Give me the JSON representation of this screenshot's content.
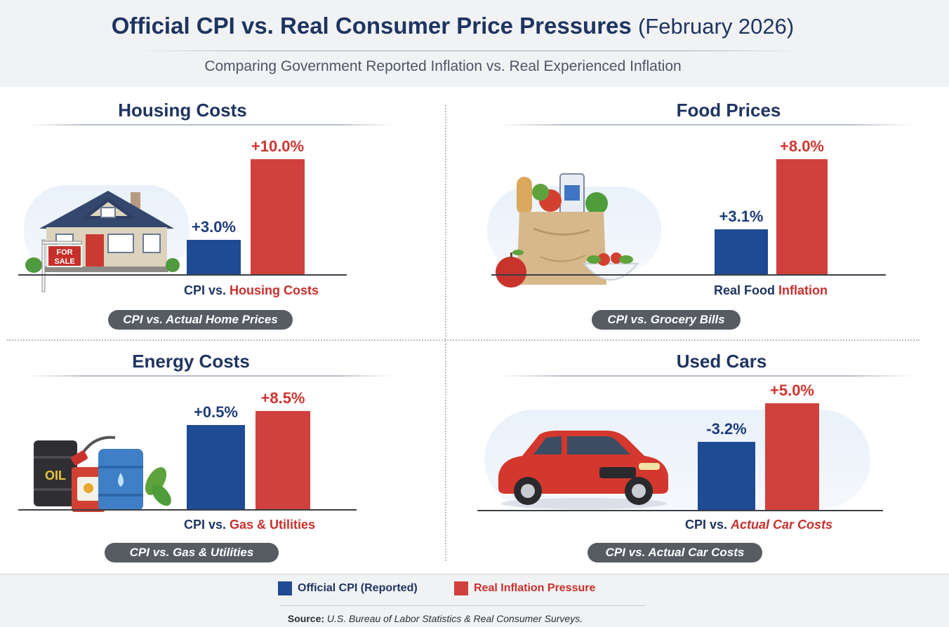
{
  "header": {
    "title_main": "Official CPI vs. Real Consumer Price Pressures",
    "title_date": "(February 2026)",
    "subtitle": "Comparing Government Reported Inflation vs. Real Experienced Inflation"
  },
  "colors": {
    "official": "#1f4a94",
    "real": "#d0413d",
    "navy": "#1e3461",
    "pill": "#575c63"
  },
  "illustrations": {
    "housing": "house-for-sale-illustration",
    "food": "grocery-bag-illustration",
    "energy": "oil-barrels-fuel-pump-illustration",
    "cars": "red-sedan-illustration",
    "for_sale_line1": "FOR",
    "for_sale_line2": "SALE",
    "oil_label": "OIL"
  },
  "chart_data": [
    {
      "type": "bar",
      "title": "Housing Costs",
      "categories": [
        "Official CPI (Reported)",
        "Real Inflation Pressure"
      ],
      "values": [
        3.0,
        10.0
      ],
      "value_labels": [
        "+3.0%",
        "+10.0%"
      ],
      "unit": "%",
      "caption_part1": "CPI vs. ",
      "caption_part2": "Housing Costs",
      "pill": "CPI vs. Actual Home Prices"
    },
    {
      "type": "bar",
      "title": "Food Prices",
      "categories": [
        "Official CPI (Reported)",
        "Real Inflation Pressure"
      ],
      "values": [
        3.1,
        8.0
      ],
      "value_labels": [
        "+3.1%",
        "+8.0%"
      ],
      "unit": "%",
      "caption_part1": "Real Food ",
      "caption_part2": "Inflation",
      "pill": "CPI vs. Grocery Bills"
    },
    {
      "type": "bar",
      "title": "Energy Costs",
      "categories": [
        "Official CPI (Reported)",
        "Real Inflation Pressure"
      ],
      "values": [
        0.5,
        8.5
      ],
      "value_labels": [
        "+0.5%",
        "+8.5%"
      ],
      "unit": "%",
      "caption_part1": "CPI vs. ",
      "caption_part2": "Gas & Utilities",
      "pill": "CPI vs. Gas & Utilities"
    },
    {
      "type": "bar",
      "title": "Used Cars",
      "categories": [
        "Official CPI (Reported)",
        "Real Inflation Pressure"
      ],
      "values": [
        -3.2,
        5.0
      ],
      "value_labels": [
        "-3.2%",
        "+5.0%"
      ],
      "unit": "%",
      "caption_part1": "CPI vs. ",
      "caption_part2": "Actual Car Costs",
      "pill": "CPI vs. Actual Car Costs"
    }
  ],
  "legend": {
    "official": "Official CPI (Reported)",
    "real": "Real Inflation Pressure"
  },
  "source": {
    "label": "Source:",
    "text": "U.S. Bureau of Labor Statistics & Real Consumer Surveys."
  }
}
